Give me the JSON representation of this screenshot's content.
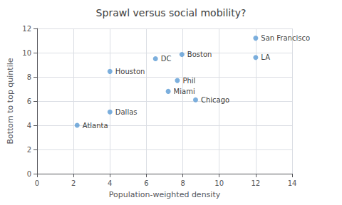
{
  "chart_data": {
    "type": "scatter",
    "title": "Sprawl versus social mobility?",
    "xlabel": "Population-weighted density",
    "ylabel": "Bottom to top quintile",
    "xlim": [
      0,
      14
    ],
    "ylim": [
      0,
      12
    ],
    "xticks": [
      0,
      2,
      4,
      6,
      8,
      10,
      12,
      14
    ],
    "yticks": [
      0,
      2,
      4,
      6,
      8,
      10,
      12
    ],
    "x": [
      2.2,
      4.0,
      4.0,
      6.5,
      7.2,
      7.7,
      7.95,
      8.7,
      12.0,
      12.0
    ],
    "values": [
      4.0,
      5.1,
      8.45,
      9.5,
      6.8,
      7.7,
      9.85,
      6.1,
      9.6,
      11.2
    ],
    "labels": [
      "Atlanta",
      "Dallas",
      "Houston",
      "DC",
      "Miami",
      "Phil",
      "Boston",
      "Chicago",
      "LA",
      "San Francisco"
    ],
    "color": "#5B9BD5",
    "grid": true
  }
}
